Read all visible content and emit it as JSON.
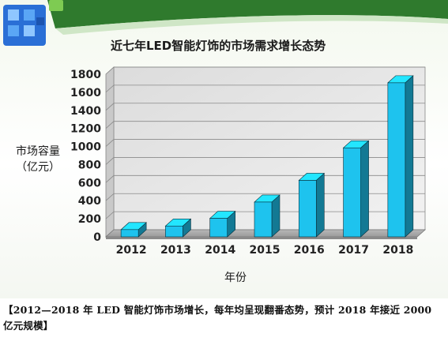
{
  "chart_data": {
    "type": "bar",
    "title": "近七年LED智能灯饰的市场需求增长态势",
    "ylabel": [
      "市场容量",
      "（亿元）"
    ],
    "xlabel": "年份",
    "categories": [
      "2012",
      "2013",
      "2014",
      "2015",
      "2016",
      "2017",
      "2018"
    ],
    "values": [
      80,
      120,
      205,
      385,
      625,
      985,
      1705
    ],
    "yticks": [
      0,
      200,
      400,
      600,
      800,
      1000,
      1200,
      1400,
      1600,
      1800
    ],
    "ylim": [
      0,
      1800
    ],
    "grid": true,
    "bar_color": "#1ec3ee"
  },
  "caption": "【2012—2018 年 LED 智能灯饰市场增长，每年均呈现翻番态势，预计 2018 年接近 2000 亿元规模】",
  "colors": {
    "header_green": "#2f7a2d",
    "logo_blue": "#2a6fd6"
  }
}
